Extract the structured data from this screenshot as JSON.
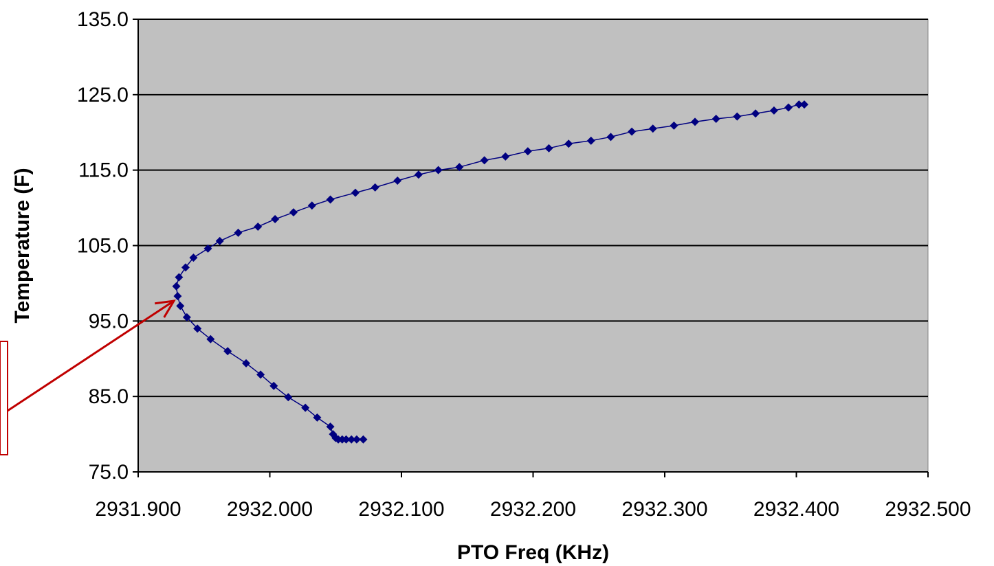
{
  "chart_data": {
    "type": "scatter",
    "title": "",
    "xlabel": "PTO Freq (KHz)",
    "ylabel": "Temperature (F)",
    "xlim": [
      2931.9,
      2932.5
    ],
    "ylim": [
      75.0,
      135.0
    ],
    "x_ticks": [
      "2931.900",
      "2932.000",
      "2932.100",
      "2932.200",
      "2932.300",
      "2932.400",
      "2932.500"
    ],
    "y_ticks": [
      "75.0",
      "85.0",
      "95.0",
      "105.0",
      "115.0",
      "125.0",
      "135.0"
    ],
    "grid": "horizontal",
    "legend": "none",
    "colors": {
      "plot_bg": "#c0c0c0",
      "series": "#000080",
      "gridline": "#000000",
      "annotation": "#c00000"
    },
    "series": [
      {
        "marker": "diamond",
        "connected": true,
        "points": [
          [
            2932.071,
            79.3
          ],
          [
            2932.066,
            79.3
          ],
          [
            2932.062,
            79.3
          ],
          [
            2932.058,
            79.3
          ],
          [
            2932.055,
            79.3
          ],
          [
            2932.052,
            79.3
          ],
          [
            2932.05,
            79.5
          ],
          [
            2932.048,
            80.0
          ],
          [
            2932.046,
            81.0
          ],
          [
            2932.036,
            82.2
          ],
          [
            2932.027,
            83.5
          ],
          [
            2932.014,
            84.9
          ],
          [
            2932.003,
            86.4
          ],
          [
            2931.993,
            87.9
          ],
          [
            2931.982,
            89.4
          ],
          [
            2931.968,
            91.0
          ],
          [
            2931.955,
            92.6
          ],
          [
            2931.945,
            94.0
          ],
          [
            2931.937,
            95.5
          ],
          [
            2931.932,
            97.0
          ],
          [
            2931.93,
            98.3
          ],
          [
            2931.929,
            99.6
          ],
          [
            2931.931,
            100.8
          ],
          [
            2931.936,
            102.1
          ],
          [
            2931.942,
            103.4
          ],
          [
            2931.953,
            104.6
          ],
          [
            2931.962,
            105.6
          ],
          [
            2931.976,
            106.7
          ],
          [
            2931.991,
            107.5
          ],
          [
            2932.004,
            108.5
          ],
          [
            2932.018,
            109.4
          ],
          [
            2932.032,
            110.3
          ],
          [
            2932.046,
            111.1
          ],
          [
            2932.065,
            112.0
          ],
          [
            2932.08,
            112.7
          ],
          [
            2932.097,
            113.6
          ],
          [
            2932.113,
            114.4
          ],
          [
            2932.128,
            115.0
          ],
          [
            2932.144,
            115.4
          ],
          [
            2932.163,
            116.3
          ],
          [
            2932.179,
            116.8
          ],
          [
            2932.196,
            117.5
          ],
          [
            2932.212,
            117.9
          ],
          [
            2932.227,
            118.5
          ],
          [
            2932.244,
            118.9
          ],
          [
            2932.259,
            119.4
          ],
          [
            2932.275,
            120.1
          ],
          [
            2932.291,
            120.5
          ],
          [
            2932.307,
            120.9
          ],
          [
            2932.323,
            121.4
          ],
          [
            2932.339,
            121.8
          ],
          [
            2932.355,
            122.1
          ],
          [
            2932.369,
            122.5
          ],
          [
            2932.383,
            122.9
          ],
          [
            2932.394,
            123.3
          ],
          [
            2932.402,
            123.7
          ],
          [
            2932.406,
            123.7
          ]
        ]
      }
    ]
  }
}
